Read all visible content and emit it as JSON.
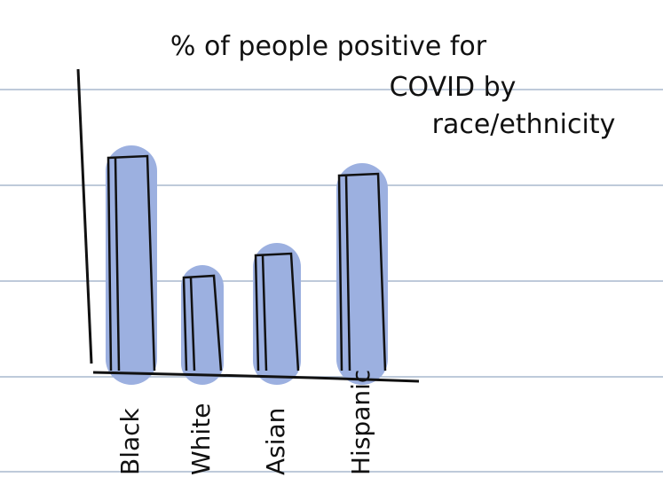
{
  "chart_data": {
    "type": "bar",
    "title": [
      "% of people positive for",
      "COVID by",
      "race/ethnicity"
    ],
    "categories": [
      "Black",
      "White",
      "Asian",
      "Hispanic"
    ],
    "values": [
      24,
      10.5,
      13,
      22
    ],
    "color": "#9cb0e0"
  }
}
